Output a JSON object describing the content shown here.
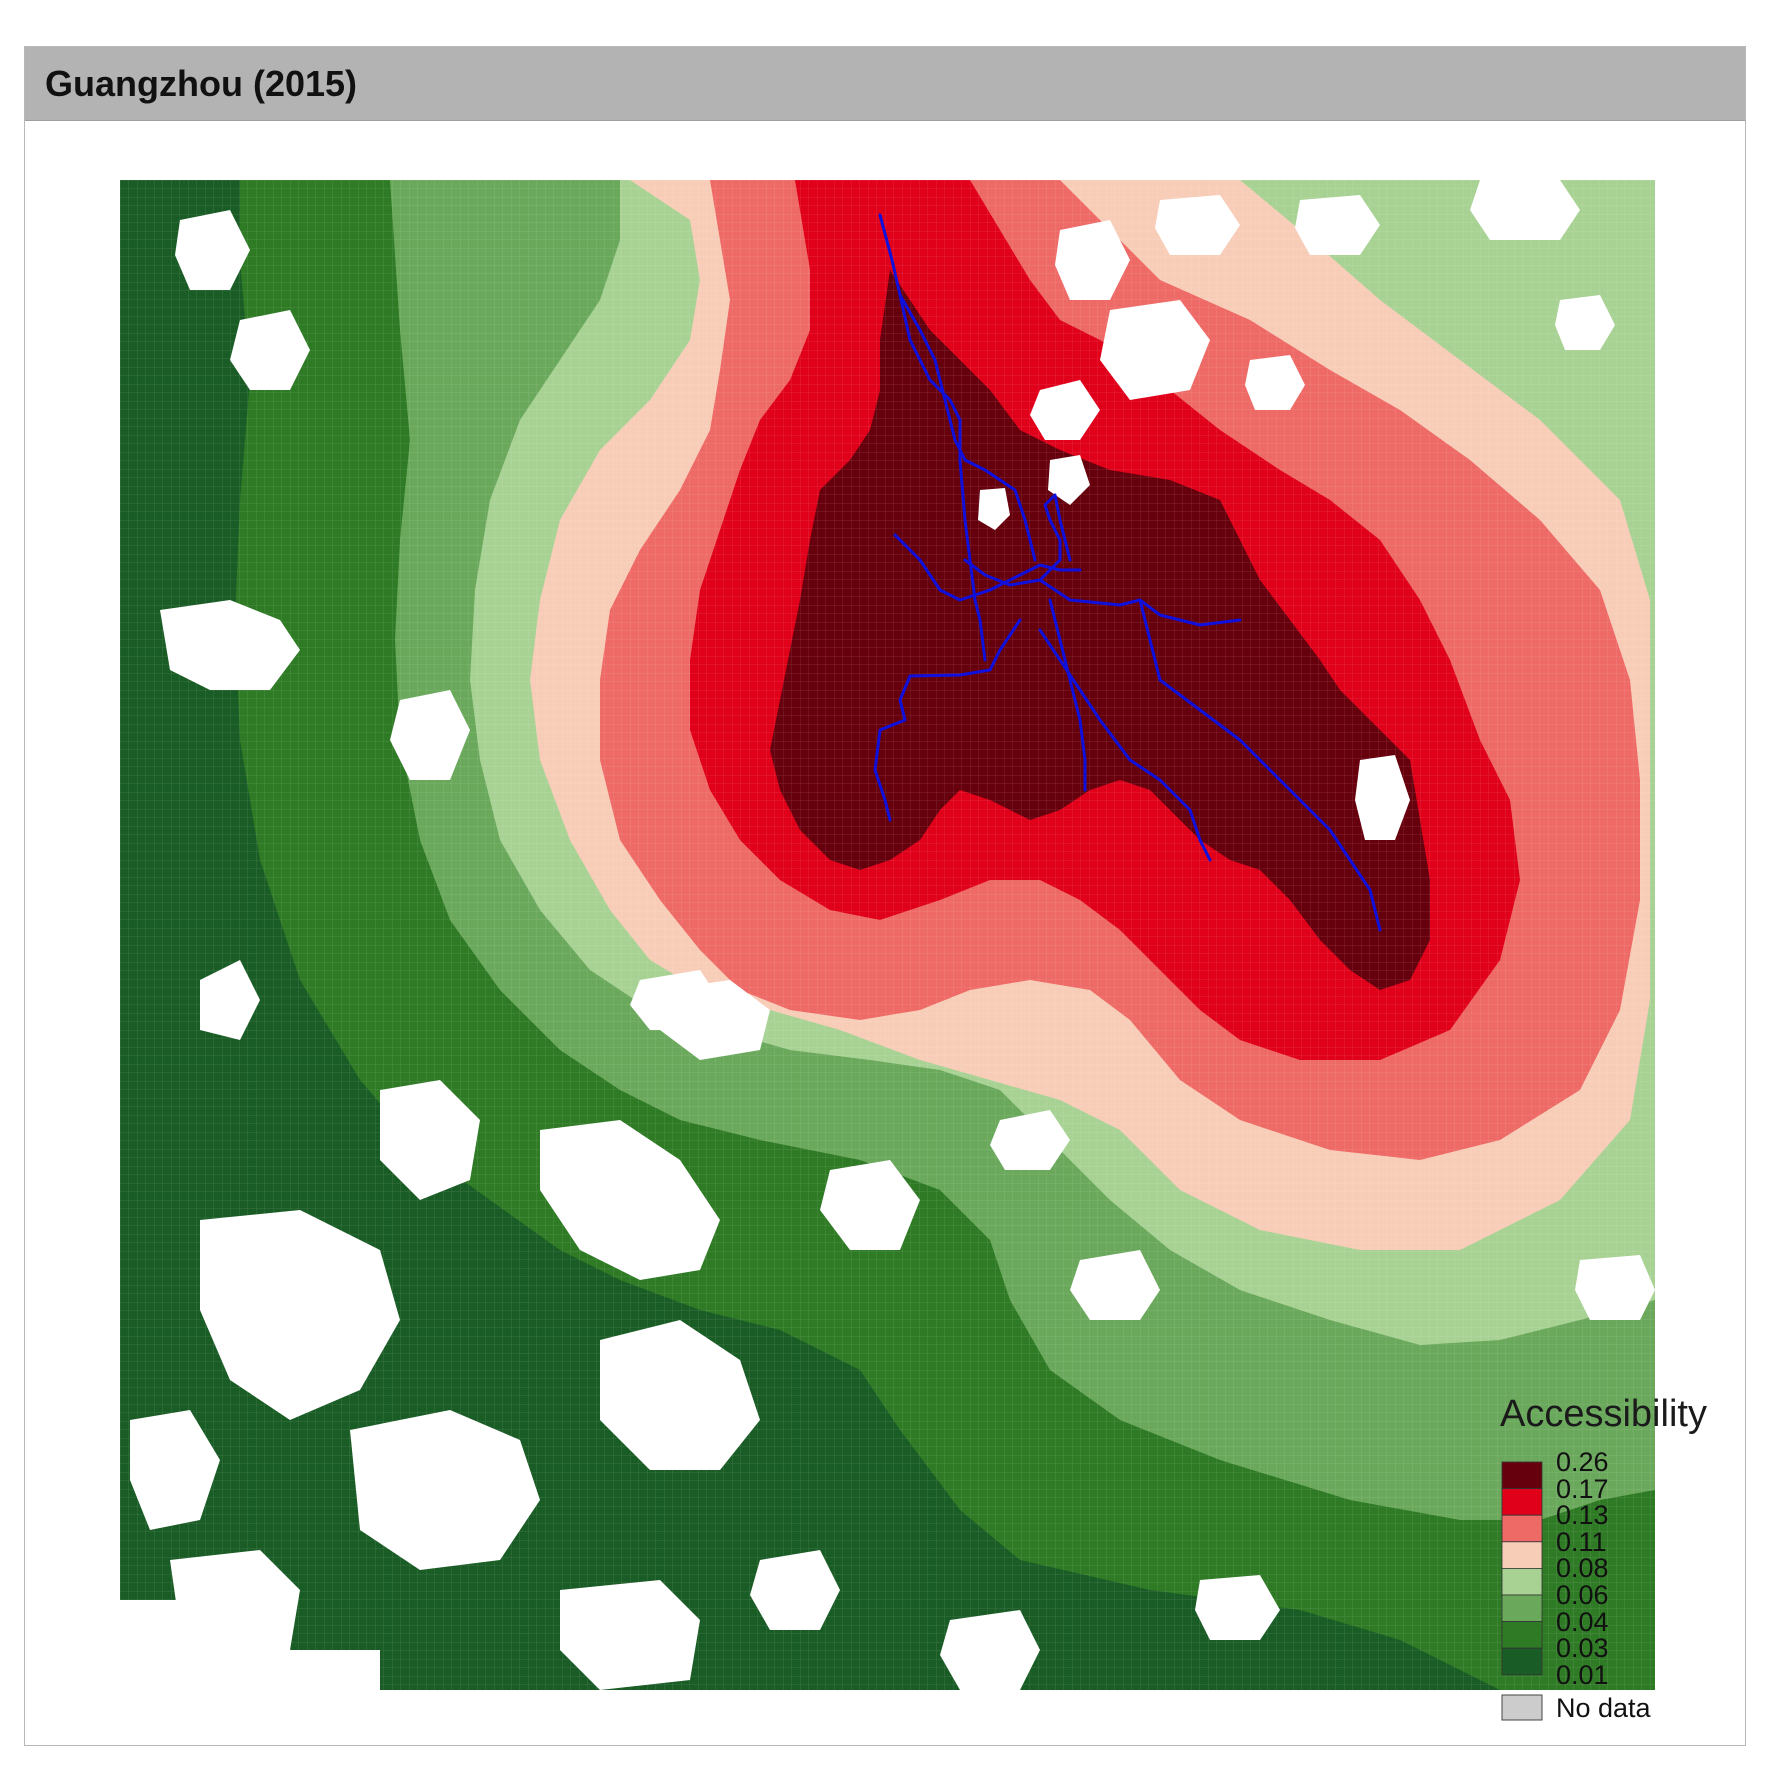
{
  "panel": {
    "title": "Guangzhou (2015)"
  },
  "map": {
    "metro_line_color": "#1010dd",
    "no_data_color": "#cccccc"
  },
  "legend": {
    "title": "Accessibility",
    "breaks": [
      "0.26",
      "0.17",
      "0.13",
      "0.11",
      "0.08",
      "0.06",
      "0.04",
      "0.03",
      "0.01"
    ],
    "colors": [
      "#67000d",
      "#e0001a",
      "#ee6a66",
      "#f8cdb8",
      "#a8d294",
      "#6aa85c",
      "#2e7a25",
      "#1a5c25"
    ],
    "no_data_label": "No data"
  }
}
